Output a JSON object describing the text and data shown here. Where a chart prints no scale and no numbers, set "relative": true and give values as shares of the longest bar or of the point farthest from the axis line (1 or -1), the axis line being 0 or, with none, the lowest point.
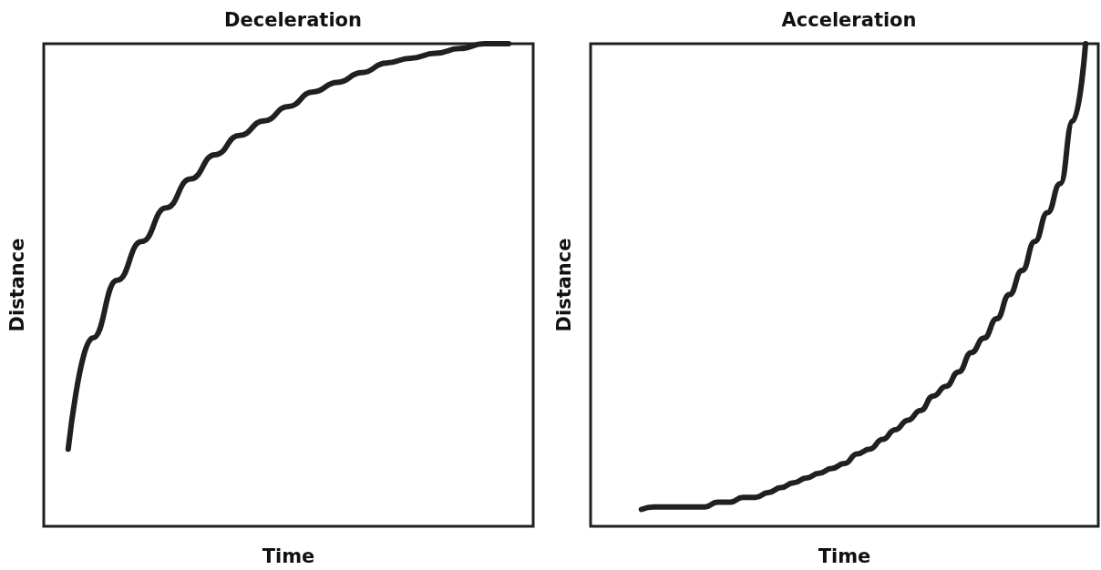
{
  "chart_data": [
    {
      "type": "line",
      "title": "Deceleration",
      "xlabel": "Time",
      "ylabel": "Distance",
      "relative": true,
      "categories": [
        null,
        null,
        null,
        null,
        null,
        null,
        null,
        null,
        null,
        null,
        null,
        null,
        null,
        null,
        null,
        null,
        null,
        null,
        null,
        null,
        null
      ],
      "series": [
        {
          "color": "#231f20",
          "values": [
            null,
            0.16,
            0.39,
            0.51,
            0.59,
            0.66,
            0.72,
            0.77,
            0.81,
            0.84,
            0.87,
            0.9,
            0.92,
            0.94,
            0.96,
            0.97,
            0.98,
            0.99,
            1.0,
            1.0,
            null
          ]
        }
      ]
    },
    {
      "type": "line",
      "title": "Acceleration",
      "xlabel": "Time",
      "ylabel": "Distance",
      "relative": true,
      "categories": [
        null,
        null,
        null,
        null,
        null,
        null,
        null,
        null,
        null,
        null,
        null,
        null,
        null,
        null,
        null,
        null,
        null,
        null,
        null,
        null,
        null,
        null,
        null,
        null,
        null,
        null,
        null,
        null,
        null,
        null,
        null,
        null,
        null,
        null,
        null,
        null,
        null,
        null,
        null,
        null,
        null
      ],
      "series": [
        {
          "color": "#231f20",
          "values": [
            null,
            null,
            null,
            null,
            0.035,
            0.04,
            0.04,
            0.04,
            0.04,
            0.04,
            0.05,
            0.05,
            0.06,
            0.06,
            0.07,
            0.08,
            0.09,
            0.1,
            0.11,
            0.12,
            0.13,
            0.15,
            0.16,
            0.18,
            0.2,
            0.22,
            0.24,
            0.27,
            0.29,
            0.32,
            0.36,
            0.39,
            0.43,
            0.48,
            0.53,
            0.59,
            0.65,
            0.71,
            0.84,
            1.0,
            null
          ]
        }
      ]
    }
  ]
}
